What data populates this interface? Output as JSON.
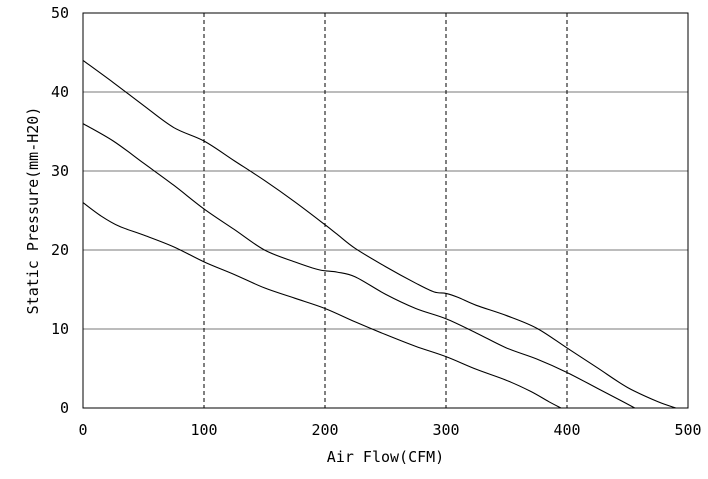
{
  "chart_data": {
    "type": "line",
    "title": "",
    "xlabel": "Air Flow(CFM)",
    "ylabel": "Static Pressure(mm-H20)",
    "xlim": [
      0,
      500
    ],
    "ylim": [
      0,
      50
    ],
    "x_ticks": [
      "0",
      "100",
      "200",
      "300",
      "400",
      "500"
    ],
    "y_ticks": [
      "0",
      "10",
      "20",
      "30",
      "40",
      "50"
    ],
    "grid": {
      "horizontal": "solid",
      "vertical": "dashed"
    },
    "legend": "none",
    "series": [
      {
        "x": [
          0,
          25,
          50,
          75,
          100,
          125,
          150,
          175,
          200,
          210,
          225,
          250,
          275,
          290,
          300,
          310,
          325,
          350,
          375,
          400,
          425,
          450,
          475,
          490
        ],
        "values": [
          44,
          41.2,
          38.3,
          35.5,
          33.8,
          31.3,
          28.8,
          26.1,
          23.2,
          22,
          20.2,
          17.9,
          15.8,
          14.7,
          14.5,
          14,
          13,
          11.7,
          10.1,
          7.6,
          5.1,
          2.6,
          0.8,
          0
        ]
      },
      {
        "x": [
          0,
          25,
          50,
          75,
          100,
          125,
          150,
          175,
          195,
          210,
          225,
          250,
          275,
          300,
          325,
          350,
          375,
          400,
          425,
          445,
          456
        ],
        "values": [
          36,
          33.8,
          31,
          28.2,
          25.2,
          22.6,
          20,
          18.5,
          17.5,
          17.2,
          16.6,
          14.4,
          12.6,
          11.3,
          9.5,
          7.6,
          6.2,
          4.5,
          2.5,
          0.9,
          0
        ]
      },
      {
        "x": [
          0,
          15,
          30,
          50,
          75,
          100,
          125,
          150,
          175,
          200,
          225,
          250,
          275,
          300,
          325,
          350,
          370,
          385,
          395
        ],
        "values": [
          26,
          24.3,
          23,
          21.9,
          20.4,
          18.5,
          16.9,
          15.2,
          13.9,
          12.6,
          10.9,
          9.3,
          7.8,
          6.5,
          4.9,
          3.5,
          2.1,
          0.8,
          0
        ]
      }
    ]
  }
}
